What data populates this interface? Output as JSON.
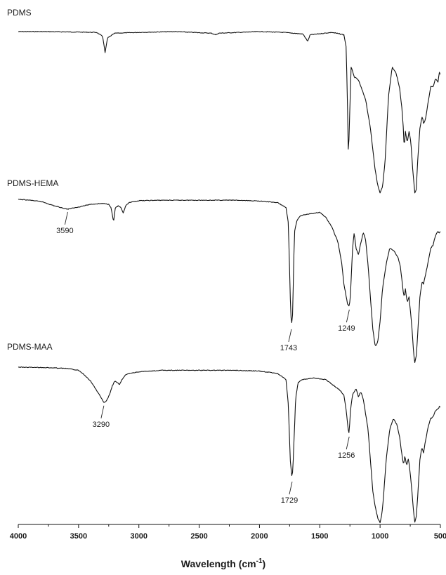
{
  "chart_data": {
    "type": "line",
    "title": "",
    "xlabel": "Wavelength (cm",
    "xlabel_sup": "-1",
    "xlabel_close": ")",
    "ylabel": "",
    "xlim": [
      4000,
      500
    ],
    "x_reversed": true,
    "grid": false,
    "legend": "none",
    "xticks": [
      4000,
      3500,
      3000,
      2500,
      2000,
      1500,
      1000,
      500
    ],
    "series": [
      {
        "name": "PDMS",
        "points": [
          [
            4000,
            0.0
          ],
          [
            3800,
            0.0
          ],
          [
            3500,
            0.003
          ],
          [
            3350,
            0.005
          ],
          [
            3300,
            0.03
          ],
          [
            3280,
            0.13
          ],
          [
            3260,
            0.04
          ],
          [
            3200,
            0.01
          ],
          [
            3000,
            0.005
          ],
          [
            2700,
            0.0
          ],
          [
            2400,
            0.01
          ],
          [
            2360,
            0.02
          ],
          [
            2340,
            0.01
          ],
          [
            2000,
            0.0
          ],
          [
            1800,
            0.005
          ],
          [
            1640,
            0.015
          ],
          [
            1600,
            0.06
          ],
          [
            1580,
            0.02
          ],
          [
            1400,
            0.005
          ],
          [
            1300,
            0.02
          ],
          [
            1280,
            0.1
          ],
          [
            1268,
            0.55
          ],
          [
            1262,
            0.82
          ],
          [
            1256,
            0.6
          ],
          [
            1240,
            0.22
          ],
          [
            1215,
            0.28
          ],
          [
            1180,
            0.3
          ],
          [
            1120,
            0.42
          ],
          [
            1080,
            0.6
          ],
          [
            1040,
            0.86
          ],
          [
            1020,
            0.95
          ],
          [
            1000,
            1.0
          ],
          [
            980,
            0.96
          ],
          [
            960,
            0.82
          ],
          [
            930,
            0.4
          ],
          [
            900,
            0.22
          ],
          [
            870,
            0.25
          ],
          [
            840,
            0.34
          ],
          [
            820,
            0.47
          ],
          [
            805,
            0.62
          ],
          [
            800,
            0.73
          ],
          [
            790,
            0.62
          ],
          [
            775,
            0.69
          ],
          [
            760,
            0.62
          ],
          [
            745,
            0.68
          ],
          [
            730,
            0.85
          ],
          [
            712,
            1.0
          ],
          [
            700,
            0.98
          ],
          [
            690,
            0.82
          ],
          [
            670,
            0.6
          ],
          [
            650,
            0.52
          ],
          [
            640,
            0.57
          ],
          [
            625,
            0.55
          ],
          [
            600,
            0.43
          ],
          [
            580,
            0.34
          ],
          [
            560,
            0.34
          ],
          [
            540,
            0.29
          ],
          [
            520,
            0.31
          ],
          [
            505,
            0.24
          ],
          [
            500,
            0.28
          ]
        ]
      },
      {
        "name": "PDMS-HEMA",
        "points": [
          [
            4000,
            0.0
          ],
          [
            3900,
            0.005
          ],
          [
            3800,
            0.015
          ],
          [
            3700,
            0.04
          ],
          [
            3620,
            0.055
          ],
          [
            3590,
            0.06
          ],
          [
            3520,
            0.05
          ],
          [
            3400,
            0.03
          ],
          [
            3300,
            0.025
          ],
          [
            3250,
            0.03
          ],
          [
            3230,
            0.05
          ],
          [
            3210,
            0.14
          ],
          [
            3195,
            0.05
          ],
          [
            3170,
            0.04
          ],
          [
            3150,
            0.05
          ],
          [
            3130,
            0.085
          ],
          [
            3110,
            0.04
          ],
          [
            3080,
            0.02
          ],
          [
            3000,
            0.008
          ],
          [
            2800,
            0.005
          ],
          [
            2500,
            0.005
          ],
          [
            2200,
            0.005
          ],
          [
            2000,
            0.01
          ],
          [
            1850,
            0.02
          ],
          [
            1780,
            0.05
          ],
          [
            1760,
            0.15
          ],
          [
            1745,
            0.6
          ],
          [
            1735,
            0.78
          ],
          [
            1725,
            0.7
          ],
          [
            1710,
            0.2
          ],
          [
            1690,
            0.13
          ],
          [
            1660,
            0.1
          ],
          [
            1600,
            0.09
          ],
          [
            1500,
            0.08
          ],
          [
            1450,
            0.11
          ],
          [
            1400,
            0.17
          ],
          [
            1350,
            0.26
          ],
          [
            1320,
            0.38
          ],
          [
            1300,
            0.52
          ],
          [
            1270,
            0.64
          ],
          [
            1255,
            0.66
          ],
          [
            1245,
            0.58
          ],
          [
            1230,
            0.32
          ],
          [
            1215,
            0.2
          ],
          [
            1200,
            0.3
          ],
          [
            1180,
            0.34
          ],
          [
            1160,
            0.27
          ],
          [
            1140,
            0.2
          ],
          [
            1120,
            0.25
          ],
          [
            1100,
            0.4
          ],
          [
            1080,
            0.6
          ],
          [
            1060,
            0.8
          ],
          [
            1040,
            0.9
          ],
          [
            1020,
            0.88
          ],
          [
            1000,
            0.75
          ],
          [
            980,
            0.55
          ],
          [
            950,
            0.4
          ],
          [
            920,
            0.3
          ],
          [
            880,
            0.32
          ],
          [
            850,
            0.36
          ],
          [
            830,
            0.42
          ],
          [
            810,
            0.56
          ],
          [
            800,
            0.6
          ],
          [
            790,
            0.55
          ],
          [
            775,
            0.63
          ],
          [
            760,
            0.6
          ],
          [
            740,
            0.75
          ],
          [
            720,
            0.96
          ],
          [
            712,
            1.0
          ],
          [
            700,
            0.96
          ],
          [
            690,
            0.85
          ],
          [
            670,
            0.6
          ],
          [
            650,
            0.5
          ],
          [
            640,
            0.52
          ],
          [
            620,
            0.45
          ],
          [
            600,
            0.38
          ],
          [
            580,
            0.3
          ],
          [
            560,
            0.28
          ],
          [
            540,
            0.22
          ],
          [
            520,
            0.2
          ],
          [
            505,
            0.21
          ],
          [
            500,
            0.19
          ]
        ]
      },
      {
        "name": "PDMS-MAA",
        "points": [
          [
            4000,
            0.0
          ],
          [
            3800,
            0.002
          ],
          [
            3600,
            0.008
          ],
          [
            3500,
            0.02
          ],
          [
            3450,
            0.05
          ],
          [
            3400,
            0.09
          ],
          [
            3350,
            0.15
          ],
          [
            3310,
            0.2
          ],
          [
            3290,
            0.23
          ],
          [
            3270,
            0.22
          ],
          [
            3240,
            0.17
          ],
          [
            3220,
            0.12
          ],
          [
            3200,
            0.09
          ],
          [
            3180,
            0.1
          ],
          [
            3160,
            0.11
          ],
          [
            3140,
            0.08
          ],
          [
            3110,
            0.05
          ],
          [
            3080,
            0.04
          ],
          [
            3000,
            0.03
          ],
          [
            2800,
            0.02
          ],
          [
            2500,
            0.02
          ],
          [
            2200,
            0.02
          ],
          [
            2000,
            0.025
          ],
          [
            1850,
            0.04
          ],
          [
            1780,
            0.08
          ],
          [
            1760,
            0.25
          ],
          [
            1745,
            0.6
          ],
          [
            1729,
            0.72
          ],
          [
            1720,
            0.6
          ],
          [
            1700,
            0.2
          ],
          [
            1680,
            0.1
          ],
          [
            1650,
            0.08
          ],
          [
            1550,
            0.07
          ],
          [
            1450,
            0.08
          ],
          [
            1380,
            0.12
          ],
          [
            1330,
            0.15
          ],
          [
            1300,
            0.18
          ],
          [
            1280,
            0.28
          ],
          [
            1265,
            0.4
          ],
          [
            1256,
            0.43
          ],
          [
            1248,
            0.3
          ],
          [
            1230,
            0.18
          ],
          [
            1200,
            0.14
          ],
          [
            1180,
            0.19
          ],
          [
            1160,
            0.16
          ],
          [
            1140,
            0.2
          ],
          [
            1120,
            0.3
          ],
          [
            1100,
            0.4
          ],
          [
            1080,
            0.6
          ],
          [
            1060,
            0.8
          ],
          [
            1040,
            0.9
          ],
          [
            1020,
            0.97
          ],
          [
            1000,
            1.0
          ],
          [
            985,
            0.95
          ],
          [
            970,
            0.82
          ],
          [
            950,
            0.6
          ],
          [
            920,
            0.4
          ],
          [
            890,
            0.33
          ],
          [
            860,
            0.37
          ],
          [
            840,
            0.44
          ],
          [
            820,
            0.56
          ],
          [
            805,
            0.63
          ],
          [
            795,
            0.57
          ],
          [
            780,
            0.63
          ],
          [
            765,
            0.59
          ],
          [
            745,
            0.72
          ],
          [
            720,
            0.95
          ],
          [
            712,
            1.0
          ],
          [
            700,
            0.96
          ],
          [
            690,
            0.86
          ],
          [
            670,
            0.6
          ],
          [
            655,
            0.52
          ],
          [
            640,
            0.55
          ],
          [
            620,
            0.46
          ],
          [
            600,
            0.38
          ],
          [
            580,
            0.33
          ],
          [
            560,
            0.32
          ],
          [
            540,
            0.28
          ],
          [
            520,
            0.27
          ],
          [
            505,
            0.25
          ],
          [
            500,
            0.26
          ]
        ]
      }
    ],
    "annotations": [
      {
        "series": "PDMS-HEMA",
        "text": "3590",
        "x": 3590
      },
      {
        "series": "PDMS-HEMA",
        "text": "1743",
        "x": 1735
      },
      {
        "series": "PDMS-HEMA",
        "text": "1249",
        "x": 1255
      },
      {
        "series": "PDMS-MAA",
        "text": "3290",
        "x": 3290
      },
      {
        "series": "PDMS-MAA",
        "text": "1729",
        "x": 1729
      },
      {
        "series": "PDMS-MAA",
        "text": "1256",
        "x": 1256
      }
    ]
  }
}
